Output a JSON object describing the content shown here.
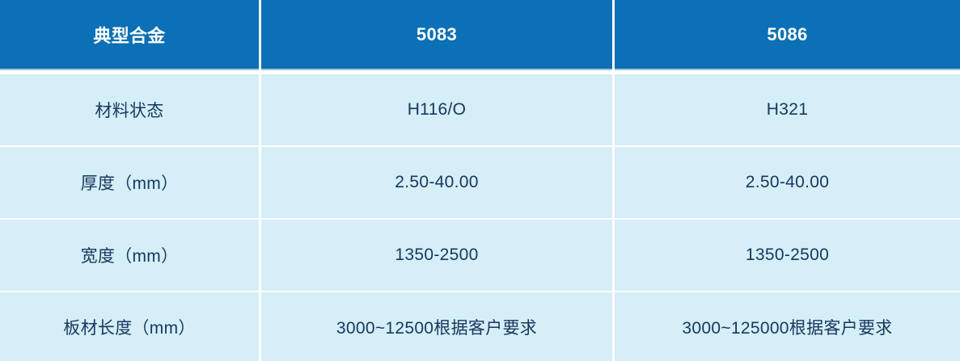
{
  "colors": {
    "header_bg": "#0b70b5",
    "row_bg": "#d5eef7",
    "header_text": "#ffffff",
    "body_text": "#17375e",
    "divider": "#ffffff",
    "header_edge": "#a4c3da"
  },
  "chart_data": {
    "type": "table",
    "title": "",
    "columns": [
      "典型合金",
      "5083",
      "5086"
    ],
    "rows": [
      [
        "材料状态",
        "H116/O",
        "H321"
      ],
      [
        "厚度（mm）",
        "2.50-40.00",
        "2.50-40.00"
      ],
      [
        "宽度（mm）",
        "1350-2500",
        "1350-2500"
      ],
      [
        "板材长度（mm）",
        "3000~12500根据客户要求",
        "3000~125000根据客户要求"
      ]
    ]
  }
}
